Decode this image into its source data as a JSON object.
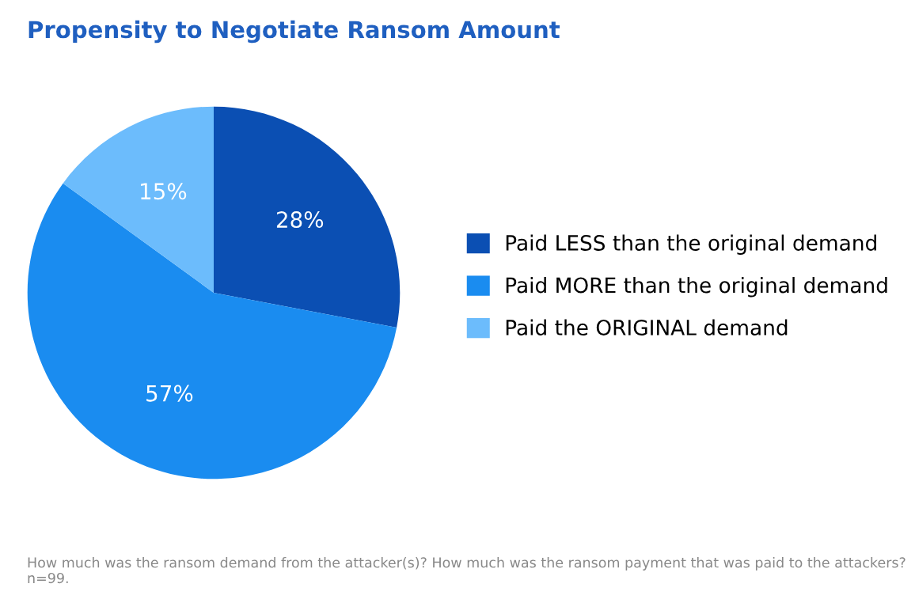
{
  "chart_data": {
    "type": "pie",
    "title": "Propensity to Negotiate Ransom Amount",
    "categories": [
      "Paid LESS than the original demand",
      "Paid MORE than the original demand",
      "Paid the ORIGINAL demand"
    ],
    "values": [
      28,
      57,
      15
    ],
    "colors": [
      "#0b4fb3",
      "#1a8cf0",
      "#6cbcfc"
    ],
    "value_labels": [
      "28%",
      "57%",
      "15%"
    ],
    "legend": "right",
    "annotations": [
      "How much was the ransom demand from the attacker(s)? How much was the ransom payment that was paid to the attackers? n=99."
    ]
  }
}
